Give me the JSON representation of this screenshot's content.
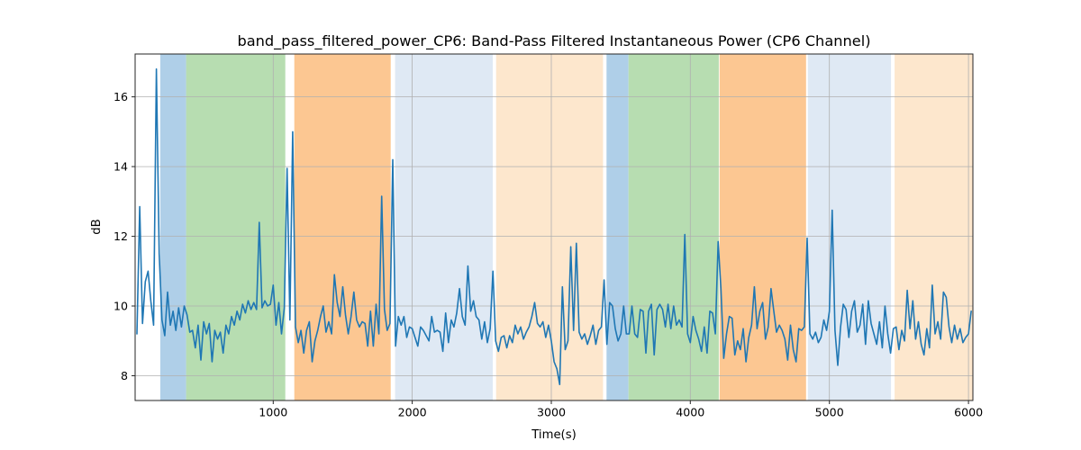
{
  "figure": {
    "title": "band_pass_filtered_power_CP6: Band-Pass Filtered Instantaneous Power (CP6 Channel)",
    "xlabel": "Time(s)",
    "ylabel": "dB"
  },
  "chart_data": {
    "type": "line",
    "title": "band_pass_filtered_power_CP6: Band-Pass Filtered Instantaneous Power (CP6 Channel)",
    "xlabel": "Time(s)",
    "ylabel": "dB",
    "xlim": [
      7,
      6032
    ],
    "ylim": [
      7.29,
      17.23
    ],
    "x_ticks": [
      1000,
      2000,
      3000,
      4000,
      5000,
      6000
    ],
    "y_ticks": [
      8,
      10,
      12,
      14,
      16
    ],
    "grid": true,
    "legend": false,
    "line_color": "#1f77b4",
    "grid_color": "#b0b0b0",
    "band_colors": {
      "blue": "#afcfe8",
      "green": "#b7ddb1",
      "orange": "#fcc792",
      "blue_light": "#dfe9f4",
      "orange_light": "#fde7cd"
    },
    "background_regions": [
      {
        "start": 188,
        "end": 374,
        "color": "#afcfe8"
      },
      {
        "start": 374,
        "end": 1087,
        "color": "#b7ddb1"
      },
      {
        "start": 1152,
        "end": 1845,
        "color": "#fcc792"
      },
      {
        "start": 1877,
        "end": 2579,
        "color": "#dfe9f4"
      },
      {
        "start": 2603,
        "end": 3372,
        "color": "#fde7cd"
      },
      {
        "start": 3397,
        "end": 3555,
        "color": "#afcfe8"
      },
      {
        "start": 3555,
        "end": 4204,
        "color": "#b7ddb1"
      },
      {
        "start": 4210,
        "end": 4832,
        "color": "#fcc792"
      },
      {
        "start": 4845,
        "end": 5443,
        "color": "#dfe9f4"
      },
      {
        "start": 5469,
        "end": 6032,
        "color": "#fde7cd"
      }
    ],
    "series": {
      "x_start": 20,
      "x_step": 20,
      "values": [
        9.2,
        12.85,
        9.5,
        10.7,
        11.0,
        10.15,
        9.45,
        16.8,
        11.5,
        9.6,
        9.15,
        10.4,
        9.45,
        9.85,
        9.3,
        9.95,
        9.4,
        10.0,
        9.75,
        9.25,
        9.3,
        8.8,
        9.45,
        8.45,
        9.55,
        9.2,
        9.5,
        8.4,
        9.3,
        9.05,
        9.25,
        8.65,
        9.45,
        9.2,
        9.7,
        9.45,
        9.85,
        9.6,
        10.05,
        9.8,
        10.15,
        9.9,
        10.1,
        9.9,
        12.4,
        9.95,
        10.15,
        10.0,
        10.05,
        10.6,
        9.45,
        10.1,
        9.2,
        9.95,
        13.95,
        9.6,
        15.0,
        9.4,
        8.95,
        9.3,
        8.65,
        9.3,
        9.55,
        8.4,
        9.0,
        9.3,
        9.7,
        10.0,
        9.25,
        9.55,
        9.2,
        10.9,
        10.1,
        9.7,
        10.55,
        9.75,
        9.2,
        9.7,
        10.4,
        9.6,
        9.4,
        9.55,
        9.5,
        8.85,
        9.85,
        8.85,
        10.05,
        9.2,
        13.15,
        9.9,
        9.3,
        9.5,
        14.2,
        8.85,
        9.7,
        9.45,
        9.7,
        9.1,
        9.4,
        9.35,
        9.1,
        8.85,
        9.4,
        9.3,
        9.15,
        9.0,
        9.7,
        9.25,
        9.3,
        9.25,
        8.7,
        9.8,
        8.95,
        9.6,
        9.4,
        9.8,
        10.5,
        9.7,
        9.45,
        11.15,
        9.85,
        10.15,
        9.7,
        9.6,
        9.05,
        9.55,
        8.95,
        9.35,
        11.0,
        9.0,
        8.7,
        9.1,
        9.15,
        8.8,
        9.15,
        8.95,
        9.45,
        9.2,
        9.4,
        9.05,
        9.25,
        9.4,
        9.7,
        10.1,
        9.5,
        9.4,
        9.55,
        9.1,
        9.45,
        9.0,
        8.4,
        8.2,
        7.75,
        10.55,
        8.75,
        9.0,
        11.7,
        9.3,
        11.8,
        9.25,
        9.05,
        9.2,
        8.9,
        9.15,
        9.45,
        8.9,
        9.3,
        9.4,
        10.75,
        8.9,
        10.1,
        10.0,
        9.35,
        9.0,
        9.2,
        10.0,
        9.2,
        9.2,
        10.0,
        9.2,
        9.1,
        9.9,
        9.85,
        8.65,
        9.85,
        10.05,
        8.6,
        9.9,
        10.05,
        9.9,
        9.4,
        10.05,
        9.35,
        10.0,
        9.45,
        9.6,
        9.4,
        12.05,
        9.2,
        8.95,
        9.7,
        9.3,
        9.05,
        8.7,
        9.4,
        8.65,
        9.85,
        9.8,
        9.2,
        11.85,
        10.5,
        8.5,
        9.2,
        9.7,
        9.65,
        8.6,
        9.0,
        8.75,
        9.35,
        8.4,
        9.1,
        9.45,
        10.55,
        9.35,
        9.85,
        10.1,
        9.05,
        9.4,
        10.5,
        9.85,
        9.25,
        9.45,
        9.3,
        9.05,
        8.45,
        9.45,
        8.75,
        8.4,
        9.35,
        9.3,
        9.4,
        11.95,
        9.2,
        9.05,
        9.25,
        8.95,
        9.1,
        9.6,
        9.3,
        9.85,
        12.75,
        9.3,
        8.3,
        9.4,
        10.05,
        9.9,
        9.1,
        9.85,
        10.15,
        9.25,
        9.45,
        10.05,
        8.9,
        10.15,
        9.5,
        9.2,
        8.9,
        9.55,
        8.8,
        10.0,
        9.2,
        8.65,
        9.35,
        9.4,
        8.75,
        9.3,
        9.0,
        10.45,
        9.35,
        10.15,
        9.05,
        9.55,
        8.9,
        8.6,
        9.35,
        8.8,
        10.6,
        9.2,
        9.55,
        9.05,
        10.4,
        10.25,
        9.4,
        8.95,
        9.45,
        9.05,
        9.35,
        8.95,
        9.1,
        9.2,
        9.85
      ]
    }
  }
}
